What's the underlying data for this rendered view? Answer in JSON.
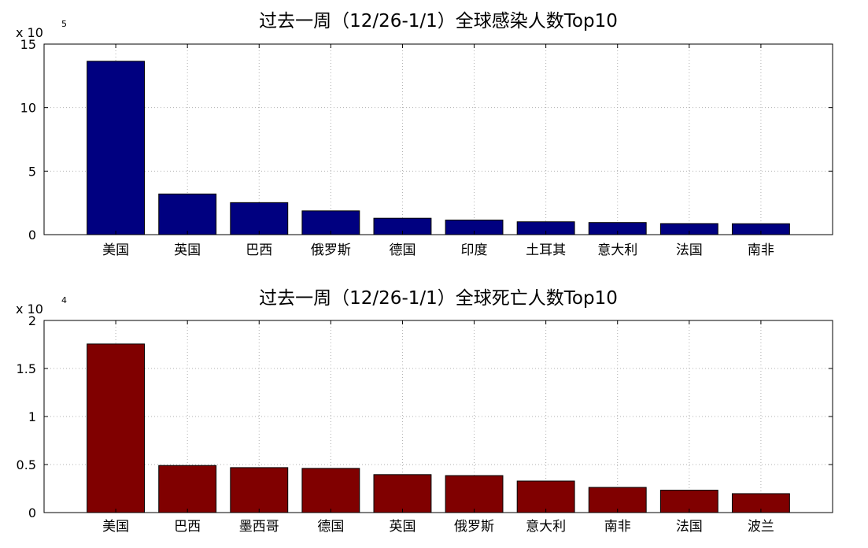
{
  "chart_data": [
    {
      "type": "bar",
      "title": "过去一周（12/26-1/1）全球感染人数Top10",
      "categories": [
        "美国",
        "英国",
        "巴西",
        "俄罗斯",
        "德国",
        "印度",
        "土耳其",
        "意大利",
        "法国",
        "南非"
      ],
      "values": [
        1365000,
        320000,
        252000,
        187000,
        129000,
        115000,
        101000,
        95000,
        87000,
        86000
      ],
      "ylim": [
        0,
        1500000
      ],
      "yticks": [
        0,
        500000,
        1000000,
        1500000
      ],
      "ytick_labels": [
        "0",
        "5",
        "10",
        "15"
      ],
      "y_exponent_base": "x 10",
      "y_exponent": "5",
      "grid": true,
      "color": "#000080"
    },
    {
      "type": "bar",
      "title": "过去一周（12/26-1/1）全球死亡人数Top10",
      "categories": [
        "美国",
        "巴西",
        "墨西哥",
        "德国",
        "英国",
        "俄罗斯",
        "意大利",
        "南非",
        "法国",
        "波兰"
      ],
      "values": [
        17550,
        4900,
        4680,
        4600,
        3950,
        3850,
        3280,
        2620,
        2330,
        1970
      ],
      "ylim": [
        0,
        20000
      ],
      "yticks": [
        0,
        5000,
        10000,
        15000,
        20000
      ],
      "ytick_labels": [
        "0",
        "0.5",
        "1",
        "1.5",
        "2"
      ],
      "y_exponent_base": "x 10",
      "y_exponent": "4",
      "grid": true,
      "color": "#800000"
    }
  ]
}
